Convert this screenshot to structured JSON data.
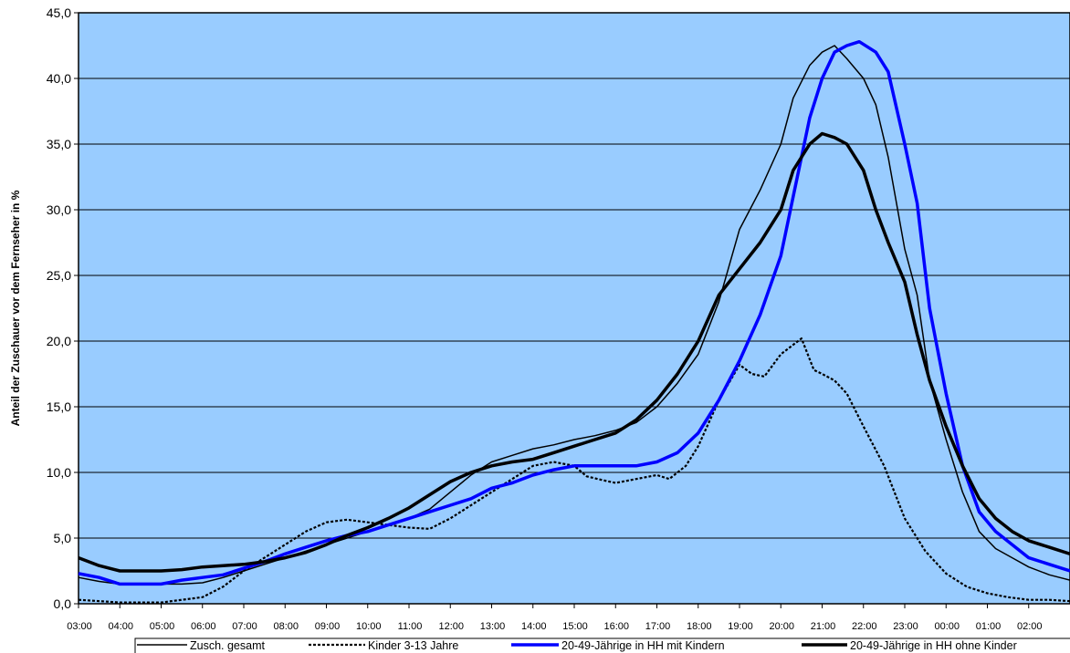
{
  "chart_data": {
    "type": "line",
    "title": "",
    "xlabel": "",
    "ylabel": "Anteil der Zuschauer vor dem Fernseher in %",
    "ylim": [
      0,
      45
    ],
    "yticks": [
      "0,0",
      "5,0",
      "10,0",
      "15,0",
      "20,0",
      "25,0",
      "30,0",
      "35,0",
      "40,0",
      "45,0"
    ],
    "xticks": [
      "03:00",
      "04:00",
      "05:00",
      "06:00",
      "07:00",
      "08:00",
      "09:00",
      "10:00",
      "11:00",
      "12:00",
      "13:00",
      "14:00",
      "15:00",
      "16:00",
      "17:00",
      "18:00",
      "19:00",
      "20:00",
      "21:00",
      "22:00",
      "23:00",
      "00:00",
      "01:00",
      "02:00"
    ],
    "grid": "horizontal",
    "legend": "bottom",
    "plot_background": "#99ccff",
    "series": [
      {
        "name": "Zusch. gesamt",
        "color": "#000000",
        "style": "thin",
        "points": [
          [
            0,
            2.0
          ],
          [
            0.5,
            1.7
          ],
          [
            1,
            1.5
          ],
          [
            1.5,
            1.5
          ],
          [
            2,
            1.5
          ],
          [
            2.5,
            1.5
          ],
          [
            3,
            1.6
          ],
          [
            3.5,
            2.0
          ],
          [
            4,
            2.5
          ],
          [
            4.5,
            3.0
          ],
          [
            5,
            3.5
          ],
          [
            5.5,
            4.0
          ],
          [
            6,
            4.5
          ],
          [
            6.5,
            5.0
          ],
          [
            7,
            5.5
          ],
          [
            7.5,
            6.0
          ],
          [
            8,
            6.5
          ],
          [
            8.5,
            7.2
          ],
          [
            9,
            8.5
          ],
          [
            9.5,
            9.8
          ],
          [
            10,
            10.8
          ],
          [
            10.5,
            11.3
          ],
          [
            11,
            11.8
          ],
          [
            11.5,
            12.1
          ],
          [
            12,
            12.5
          ],
          [
            12.5,
            12.8
          ],
          [
            13,
            13.2
          ],
          [
            13.5,
            13.8
          ],
          [
            14,
            15.0
          ],
          [
            14.5,
            16.8
          ],
          [
            15,
            19.0
          ],
          [
            15.5,
            23.0
          ],
          [
            16,
            28.5
          ],
          [
            16.5,
            31.5
          ],
          [
            17,
            35.0
          ],
          [
            17.3,
            38.5
          ],
          [
            17.7,
            41.0
          ],
          [
            18,
            42.0
          ],
          [
            18.3,
            42.5
          ],
          [
            18.6,
            41.5
          ],
          [
            19,
            40.0
          ],
          [
            19.3,
            38.0
          ],
          [
            19.6,
            34.0
          ],
          [
            20,
            27.0
          ],
          [
            20.3,
            23.5
          ],
          [
            20.6,
            17.0
          ],
          [
            21,
            12.5
          ],
          [
            21.4,
            8.5
          ],
          [
            21.8,
            5.5
          ],
          [
            22.2,
            4.2
          ],
          [
            22.6,
            3.5
          ],
          [
            23,
            2.8
          ],
          [
            23.5,
            2.2
          ],
          [
            24,
            1.8
          ]
        ]
      },
      {
        "name": "Kinder 3-13 Jahre",
        "color": "#000000",
        "style": "dotted",
        "points": [
          [
            0,
            0.3
          ],
          [
            0.5,
            0.2
          ],
          [
            1,
            0.1
          ],
          [
            1.5,
            0.1
          ],
          [
            2,
            0.1
          ],
          [
            2.5,
            0.3
          ],
          [
            3,
            0.5
          ],
          [
            3.5,
            1.3
          ],
          [
            4,
            2.5
          ],
          [
            4.5,
            3.5
          ],
          [
            5,
            4.5
          ],
          [
            5.5,
            5.5
          ],
          [
            6,
            6.2
          ],
          [
            6.5,
            6.4
          ],
          [
            7,
            6.2
          ],
          [
            7.5,
            6.0
          ],
          [
            8,
            5.8
          ],
          [
            8.5,
            5.7
          ],
          [
            9,
            6.5
          ],
          [
            9.5,
            7.5
          ],
          [
            10,
            8.5
          ],
          [
            10.5,
            9.5
          ],
          [
            11,
            10.5
          ],
          [
            11.5,
            10.8
          ],
          [
            12,
            10.5
          ],
          [
            12.3,
            9.7
          ],
          [
            12.7,
            9.4
          ],
          [
            13,
            9.2
          ],
          [
            13.5,
            9.5
          ],
          [
            14,
            9.8
          ],
          [
            14.3,
            9.5
          ],
          [
            14.7,
            10.5
          ],
          [
            15,
            12.0
          ],
          [
            15.5,
            15.5
          ],
          [
            16,
            18.2
          ],
          [
            16.3,
            17.5
          ],
          [
            16.6,
            17.3
          ],
          [
            17,
            19.0
          ],
          [
            17.5,
            20.2
          ],
          [
            17.8,
            17.8
          ],
          [
            18,
            17.5
          ],
          [
            18.3,
            17.0
          ],
          [
            18.6,
            16.0
          ],
          [
            19,
            13.5
          ],
          [
            19.5,
            10.5
          ],
          [
            20,
            6.5
          ],
          [
            20.5,
            4.0
          ],
          [
            21,
            2.3
          ],
          [
            21.5,
            1.3
          ],
          [
            22,
            0.8
          ],
          [
            22.5,
            0.5
          ],
          [
            23,
            0.3
          ],
          [
            23.5,
            0.3
          ],
          [
            24,
            0.2
          ]
        ]
      },
      {
        "name": "20-49-Jährige in HH mit Kindern",
        "color": "#0000ff",
        "style": "medium",
        "points": [
          [
            0,
            2.3
          ],
          [
            0.5,
            2.0
          ],
          [
            1,
            1.5
          ],
          [
            1.5,
            1.5
          ],
          [
            2,
            1.5
          ],
          [
            2.5,
            1.8
          ],
          [
            3,
            2.0
          ],
          [
            3.5,
            2.2
          ],
          [
            4,
            2.7
          ],
          [
            4.5,
            3.2
          ],
          [
            5,
            3.8
          ],
          [
            5.5,
            4.3
          ],
          [
            6,
            4.8
          ],
          [
            6.5,
            5.2
          ],
          [
            7,
            5.5
          ],
          [
            7.5,
            6.0
          ],
          [
            8,
            6.5
          ],
          [
            8.5,
            7.0
          ],
          [
            9,
            7.5
          ],
          [
            9.5,
            8.0
          ],
          [
            10,
            8.8
          ],
          [
            10.5,
            9.2
          ],
          [
            11,
            9.8
          ],
          [
            11.5,
            10.2
          ],
          [
            12,
            10.5
          ],
          [
            12.5,
            10.5
          ],
          [
            13,
            10.5
          ],
          [
            13.5,
            10.5
          ],
          [
            14,
            10.8
          ],
          [
            14.5,
            11.5
          ],
          [
            15,
            13.0
          ],
          [
            15.5,
            15.5
          ],
          [
            16,
            18.5
          ],
          [
            16.5,
            22.0
          ],
          [
            17,
            26.5
          ],
          [
            17.3,
            31.0
          ],
          [
            17.7,
            37.0
          ],
          [
            18,
            40.0
          ],
          [
            18.3,
            42.0
          ],
          [
            18.6,
            42.5
          ],
          [
            18.9,
            42.8
          ],
          [
            19.3,
            42.0
          ],
          [
            19.6,
            40.5
          ],
          [
            20,
            35.0
          ],
          [
            20.3,
            30.5
          ],
          [
            20.6,
            22.5
          ],
          [
            21,
            16.0
          ],
          [
            21.4,
            10.5
          ],
          [
            21.8,
            7.0
          ],
          [
            22.2,
            5.5
          ],
          [
            22.6,
            4.5
          ],
          [
            23,
            3.5
          ],
          [
            23.5,
            3.0
          ],
          [
            24,
            2.5
          ]
        ]
      },
      {
        "name": "20-49-Jährige in HH ohne Kinder",
        "color": "#000000",
        "style": "thick",
        "points": [
          [
            0,
            3.5
          ],
          [
            0.5,
            2.9
          ],
          [
            1,
            2.5
          ],
          [
            1.5,
            2.5
          ],
          [
            2,
            2.5
          ],
          [
            2.5,
            2.6
          ],
          [
            3,
            2.8
          ],
          [
            3.5,
            2.9
          ],
          [
            4,
            3.0
          ],
          [
            4.5,
            3.2
          ],
          [
            5,
            3.5
          ],
          [
            5.5,
            3.9
          ],
          [
            6,
            4.5
          ],
          [
            6.5,
            5.2
          ],
          [
            7,
            5.8
          ],
          [
            7.5,
            6.5
          ],
          [
            8,
            7.3
          ],
          [
            8.5,
            8.3
          ],
          [
            9,
            9.3
          ],
          [
            9.5,
            10.0
          ],
          [
            10,
            10.5
          ],
          [
            10.5,
            10.8
          ],
          [
            11,
            11.0
          ],
          [
            11.5,
            11.5
          ],
          [
            12,
            12.0
          ],
          [
            12.5,
            12.5
          ],
          [
            13,
            13.0
          ],
          [
            13.5,
            14.0
          ],
          [
            14,
            15.5
          ],
          [
            14.5,
            17.5
          ],
          [
            15,
            20.0
          ],
          [
            15.5,
            23.5
          ],
          [
            16,
            25.5
          ],
          [
            16.5,
            27.5
          ],
          [
            17,
            30.0
          ],
          [
            17.3,
            33.0
          ],
          [
            17.7,
            35.0
          ],
          [
            18,
            35.8
          ],
          [
            18.3,
            35.5
          ],
          [
            18.6,
            35.0
          ],
          [
            19,
            33.0
          ],
          [
            19.3,
            30.0
          ],
          [
            19.6,
            27.5
          ],
          [
            20,
            24.5
          ],
          [
            20.3,
            20.5
          ],
          [
            20.6,
            17.0
          ],
          [
            21,
            13.5
          ],
          [
            21.4,
            10.5
          ],
          [
            21.8,
            8.0
          ],
          [
            22.2,
            6.5
          ],
          [
            22.6,
            5.5
          ],
          [
            23,
            4.8
          ],
          [
            23.5,
            4.3
          ],
          [
            24,
            3.8
          ]
        ]
      }
    ]
  }
}
